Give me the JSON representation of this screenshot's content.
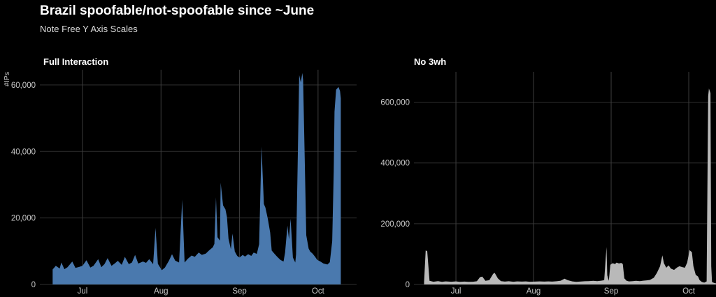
{
  "header": {
    "title": "Brazil spoofable/not-spoofable since ~June",
    "subtitle": "Note Free Y Axis Scales"
  },
  "colors": {
    "background": "#000000",
    "grid_horizontal": "#303030",
    "grid_vertical": "#3d3d3d",
    "tick_text": "#c9c9c9",
    "title_text": "#ffffff",
    "full_interaction_fill": "#4a79ae",
    "no_3wh_fill": "#b9b9b9"
  },
  "chart_data": [
    {
      "type": "area",
      "title": "Full Interaction",
      "ylabel": "#IPs",
      "xlabel": "",
      "x_unit": "month position (1=Jul, 2=Aug, 3=Sep, 4=Oct)",
      "grid": "on",
      "legend": "none",
      "fill": "#4a79ae",
      "xlim": [
        0.457,
        4.491
      ],
      "ylim": [
        0,
        64600
      ],
      "x_ticks": [
        {
          "x": 1,
          "label": "Jul"
        },
        {
          "x": 2,
          "label": "Aug"
        },
        {
          "x": 3,
          "label": "Sep"
        },
        {
          "x": 4,
          "label": "Oct"
        }
      ],
      "y_ticks": [
        {
          "v": 0,
          "label": "0"
        },
        {
          "v": 20000,
          "label": "20,000"
        },
        {
          "v": 40000,
          "label": "40,000"
        },
        {
          "v": 60000,
          "label": "60,000"
        }
      ],
      "points": [
        [
          0.62,
          4500
        ],
        [
          0.66,
          5600
        ],
        [
          0.71,
          4800
        ],
        [
          0.73,
          6600
        ],
        [
          0.77,
          4600
        ],
        [
          0.81,
          5200
        ],
        [
          0.87,
          6900
        ],
        [
          0.91,
          5000
        ],
        [
          0.96,
          5300
        ],
        [
          1.0,
          5600
        ],
        [
          1.05,
          7300
        ],
        [
          1.1,
          5100
        ],
        [
          1.14,
          5600
        ],
        [
          1.2,
          7600
        ],
        [
          1.24,
          5200
        ],
        [
          1.28,
          6100
        ],
        [
          1.32,
          7900
        ],
        [
          1.37,
          5600
        ],
        [
          1.41,
          6300
        ],
        [
          1.45,
          7100
        ],
        [
          1.5,
          5900
        ],
        [
          1.54,
          8300
        ],
        [
          1.59,
          6100
        ],
        [
          1.63,
          6600
        ],
        [
          1.67,
          8900
        ],
        [
          1.71,
          6300
        ],
        [
          1.77,
          6900
        ],
        [
          1.81,
          6500
        ],
        [
          1.85,
          7600
        ],
        [
          1.9,
          6100
        ],
        [
          1.93,
          17000
        ],
        [
          1.96,
          6200
        ],
        [
          2.01,
          4300
        ],
        [
          2.05,
          5100
        ],
        [
          2.1,
          7100
        ],
        [
          2.14,
          9100
        ],
        [
          2.18,
          7200
        ],
        [
          2.23,
          6600
        ],
        [
          2.27,
          25500
        ],
        [
          2.3,
          6600
        ],
        [
          2.34,
          7700
        ],
        [
          2.39,
          8700
        ],
        [
          2.43,
          8300
        ],
        [
          2.48,
          9600
        ],
        [
          2.52,
          8900
        ],
        [
          2.57,
          9300
        ],
        [
          2.61,
          10200
        ],
        [
          2.66,
          11200
        ],
        [
          2.68,
          12200
        ],
        [
          2.7,
          26200
        ],
        [
          2.72,
          14200
        ],
        [
          2.75,
          13200
        ],
        [
          2.76,
          30600
        ],
        [
          2.79,
          23800
        ],
        [
          2.82,
          22600
        ],
        [
          2.84,
          20300
        ],
        [
          2.86,
          13800
        ],
        [
          2.89,
          10600
        ],
        [
          2.91,
          15300
        ],
        [
          2.94,
          9900
        ],
        [
          2.97,
          8600
        ],
        [
          3.0,
          8100
        ],
        [
          3.04,
          8900
        ],
        [
          3.07,
          8400
        ],
        [
          3.11,
          9100
        ],
        [
          3.15,
          8600
        ],
        [
          3.18,
          9600
        ],
        [
          3.22,
          9200
        ],
        [
          3.25,
          12100
        ],
        [
          3.28,
          41500
        ],
        [
          3.31,
          24200
        ],
        [
          3.33,
          23100
        ],
        [
          3.36,
          19800
        ],
        [
          3.39,
          15600
        ],
        [
          3.41,
          10200
        ],
        [
          3.45,
          9100
        ],
        [
          3.48,
          8300
        ],
        [
          3.52,
          7400
        ],
        [
          3.56,
          6900
        ],
        [
          3.58,
          9600
        ],
        [
          3.61,
          17700
        ],
        [
          3.63,
          13600
        ],
        [
          3.65,
          19800
        ],
        [
          3.68,
          8100
        ],
        [
          3.71,
          6600
        ],
        [
          3.72,
          9000
        ],
        [
          3.74,
          36000
        ],
        [
          3.76,
          63000
        ],
        [
          3.78,
          60800
        ],
        [
          3.8,
          63600
        ],
        [
          3.81,
          61500
        ],
        [
          3.83,
          38000
        ],
        [
          3.85,
          14800
        ],
        [
          3.88,
          10800
        ],
        [
          3.9,
          9900
        ],
        [
          3.93,
          9300
        ],
        [
          3.96,
          8400
        ],
        [
          3.99,
          7400
        ],
        [
          4.03,
          6900
        ],
        [
          4.07,
          6300
        ],
        [
          4.12,
          6000
        ],
        [
          4.15,
          6700
        ],
        [
          4.18,
          13000
        ],
        [
          4.2,
          34000
        ],
        [
          4.21,
          52000
        ],
        [
          4.23,
          58600
        ],
        [
          4.26,
          59400
        ],
        [
          4.28,
          58200
        ],
        [
          4.29,
          56000
        ]
      ]
    },
    {
      "type": "area",
      "title": "No 3wh",
      "ylabel": "",
      "xlabel": "",
      "x_unit": "month position (1=Jul, 2=Aug, 3=Sep, 4=Oct)",
      "grid": "on",
      "legend": "none",
      "fill": "#b9b9b9",
      "xlim": [
        0.459,
        4.351
      ],
      "ylim": [
        0,
        700000
      ],
      "x_ticks": [
        {
          "x": 1,
          "label": "Jul"
        },
        {
          "x": 2,
          "label": "Aug"
        },
        {
          "x": 3,
          "label": "Sep"
        },
        {
          "x": 4,
          "label": "Oct"
        }
      ],
      "y_ticks": [
        {
          "v": 0,
          "label": "0"
        },
        {
          "v": 200000,
          "label": "200,000"
        },
        {
          "v": 400000,
          "label": "400,000"
        },
        {
          "v": 600000,
          "label": "600,000"
        }
      ],
      "points": [
        [
          0.59,
          8000
        ],
        [
          0.61,
          112000
        ],
        [
          0.63,
          110000
        ],
        [
          0.66,
          12000
        ],
        [
          0.71,
          9000
        ],
        [
          0.77,
          11000
        ],
        [
          0.82,
          8500
        ],
        [
          0.87,
          10000
        ],
        [
          0.94,
          9000
        ],
        [
          1.0,
          10000
        ],
        [
          1.05,
          8500
        ],
        [
          1.11,
          9500
        ],
        [
          1.16,
          8500
        ],
        [
          1.22,
          9000
        ],
        [
          1.27,
          10500
        ],
        [
          1.31,
          24000
        ],
        [
          1.34,
          26000
        ],
        [
          1.38,
          12000
        ],
        [
          1.43,
          14000
        ],
        [
          1.48,
          35000
        ],
        [
          1.5,
          38000
        ],
        [
          1.54,
          20000
        ],
        [
          1.58,
          11000
        ],
        [
          1.63,
          9500
        ],
        [
          1.68,
          10500
        ],
        [
          1.74,
          9000
        ],
        [
          1.79,
          10000
        ],
        [
          1.85,
          9500
        ],
        [
          1.9,
          10000
        ],
        [
          1.95,
          9000
        ],
        [
          2.02,
          9500
        ],
        [
          2.08,
          10000
        ],
        [
          2.14,
          9500
        ],
        [
          2.19,
          10000
        ],
        [
          2.24,
          9500
        ],
        [
          2.3,
          10500
        ],
        [
          2.35,
          12500
        ],
        [
          2.4,
          19000
        ],
        [
          2.44,
          14000
        ],
        [
          2.5,
          10000
        ],
        [
          2.55,
          8500
        ],
        [
          2.6,
          9500
        ],
        [
          2.66,
          10500
        ],
        [
          2.71,
          11000
        ],
        [
          2.77,
          12000
        ],
        [
          2.82,
          11000
        ],
        [
          2.87,
          12500
        ],
        [
          2.91,
          14000
        ],
        [
          2.94,
          123000
        ],
        [
          2.95,
          30000
        ],
        [
          2.97,
          12000
        ],
        [
          2.99,
          65000
        ],
        [
          3.02,
          70000
        ],
        [
          3.05,
          67000
        ],
        [
          3.07,
          72000
        ],
        [
          3.1,
          69000
        ],
        [
          3.13,
          71000
        ],
        [
          3.15,
          67000
        ],
        [
          3.17,
          20000
        ],
        [
          3.2,
          12000
        ],
        [
          3.23,
          10000
        ],
        [
          3.28,
          11000
        ],
        [
          3.32,
          12000
        ],
        [
          3.37,
          11000
        ],
        [
          3.41,
          12500
        ],
        [
          3.46,
          13500
        ],
        [
          3.5,
          15000
        ],
        [
          3.55,
          22000
        ],
        [
          3.59,
          38000
        ],
        [
          3.63,
          60000
        ],
        [
          3.66,
          96000
        ],
        [
          3.68,
          70000
        ],
        [
          3.71,
          55000
        ],
        [
          3.74,
          63000
        ],
        [
          3.77,
          52000
        ],
        [
          3.81,
          48000
        ],
        [
          3.85,
          56000
        ],
        [
          3.88,
          60000
        ],
        [
          3.92,
          57000
        ],
        [
          3.95,
          55000
        ],
        [
          3.98,
          72000
        ],
        [
          4.01,
          113000
        ],
        [
          4.04,
          106000
        ],
        [
          4.06,
          60000
        ],
        [
          4.09,
          32000
        ],
        [
          4.12,
          26000
        ],
        [
          4.14,
          14000
        ],
        [
          4.17,
          8000
        ],
        [
          4.2,
          6000
        ],
        [
          4.23,
          10000
        ],
        [
          4.25,
          620000
        ],
        [
          4.26,
          645000
        ],
        [
          4.28,
          630000
        ],
        [
          4.29,
          60000
        ],
        [
          4.3,
          8000
        ],
        [
          4.33,
          4500
        ],
        [
          4.35,
          4000
        ]
      ]
    }
  ]
}
